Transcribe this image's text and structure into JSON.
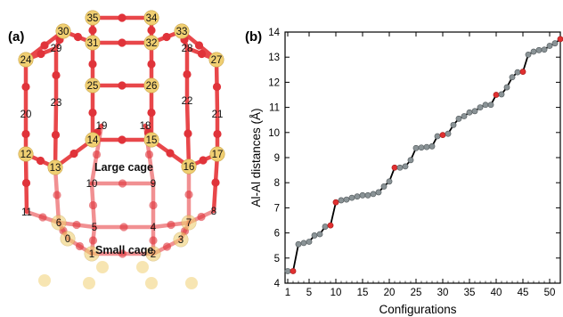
{
  "panel_a": {
    "label": "(a)",
    "cage_labels": [
      "Large cage",
      "Small cage"
    ],
    "atom_labels": [
      "0",
      "1",
      "2",
      "3",
      "4",
      "5",
      "6",
      "7",
      "8",
      "9",
      "10",
      "11",
      "12",
      "13",
      "14",
      "15",
      "16",
      "17",
      "18",
      "19",
      "20",
      "21",
      "22",
      "23",
      "24",
      "25",
      "26",
      "27",
      "28",
      "29",
      "30",
      "31",
      "32",
      "33",
      "34",
      "35"
    ],
    "colors": {
      "al_atom": "#f0cf72",
      "o_atom": "#e0333a",
      "bond": "#e8474a"
    }
  },
  "chart_data": {
    "type": "line",
    "label": "(b)",
    "title": "",
    "xlabel": "Configurations",
    "ylabel": "Al-Al distances (Å)",
    "xlim": [
      0.5,
      52
    ],
    "ylim": [
      4,
      14
    ],
    "xticks": [
      1,
      5,
      10,
      15,
      20,
      25,
      30,
      35,
      40,
      45,
      50
    ],
    "yticks": [
      4,
      5,
      6,
      7,
      8,
      9,
      10,
      11,
      12,
      13,
      14
    ],
    "x": [
      1,
      2,
      3,
      4,
      5,
      6,
      7,
      8,
      9,
      10,
      11,
      12,
      13,
      14,
      15,
      16,
      17,
      18,
      19,
      20,
      21,
      22,
      23,
      24,
      25,
      26,
      27,
      28,
      29,
      30,
      31,
      32,
      33,
      34,
      35,
      36,
      37,
      38,
      39,
      40,
      41,
      42,
      43,
      44,
      45,
      46,
      47,
      48,
      49,
      50,
      51,
      52
    ],
    "y": [
      4.48,
      4.48,
      5.55,
      5.6,
      5.65,
      5.9,
      5.95,
      6.25,
      6.3,
      7.22,
      7.3,
      7.33,
      7.4,
      7.45,
      7.5,
      7.5,
      7.55,
      7.62,
      7.85,
      8.05,
      8.6,
      8.6,
      8.65,
      8.9,
      9.38,
      9.4,
      9.42,
      9.45,
      9.85,
      9.9,
      9.95,
      10.3,
      10.55,
      10.65,
      10.8,
      10.85,
      11.0,
      11.1,
      11.1,
      11.5,
      11.52,
      11.8,
      12.2,
      12.4,
      12.42,
      13.1,
      13.22,
      13.28,
      13.3,
      13.45,
      13.55,
      13.72
    ],
    "highlight_points": [
      2,
      9,
      10,
      21,
      30,
      40,
      45,
      52
    ],
    "grid": false,
    "legend": "none",
    "colors": {
      "line": "#000000",
      "point": "#8a9396",
      "highlight": "#e03030"
    }
  }
}
